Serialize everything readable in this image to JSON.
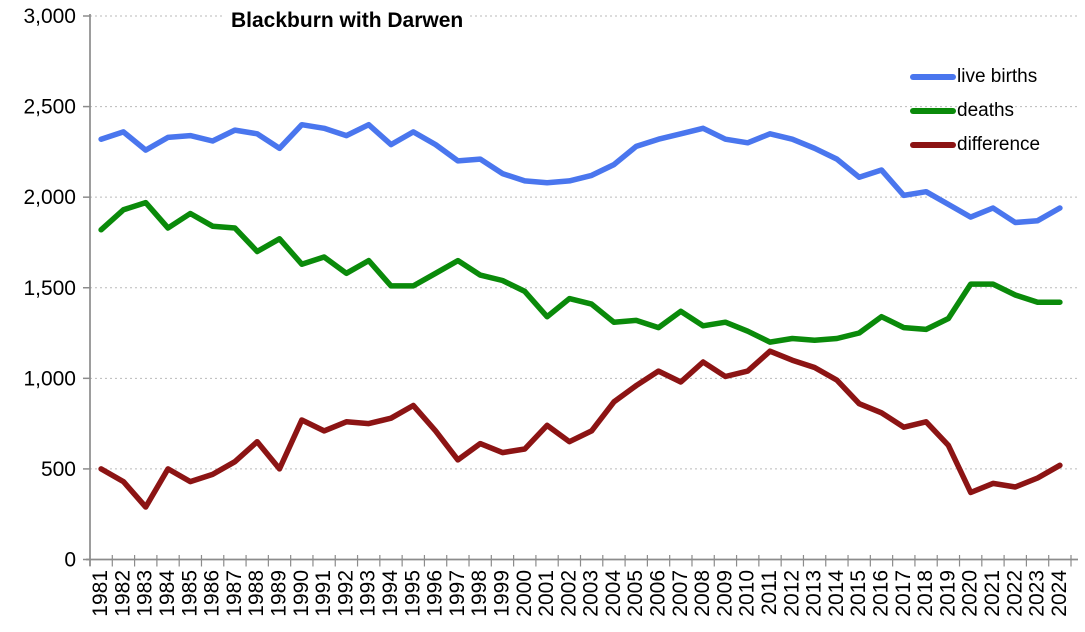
{
  "chart_data": {
    "type": "line",
    "title": "Blackburn with Darwen",
    "years": [
      1981,
      1982,
      1983,
      1984,
      1985,
      1986,
      1987,
      1988,
      1989,
      1990,
      1991,
      1992,
      1993,
      1994,
      1995,
      1996,
      1997,
      1998,
      1999,
      2000,
      2001,
      2002,
      2003,
      2004,
      2005,
      2006,
      2007,
      2008,
      2009,
      2010,
      2011,
      2012,
      2013,
      2014,
      2015,
      2016,
      2017,
      2018,
      2019,
      2020,
      2021,
      2022,
      2023,
      2024
    ],
    "series": [
      {
        "name": "live births",
        "color": "#4a76ee",
        "values": [
          2320,
          2360,
          2260,
          2330,
          2340,
          2310,
          2370,
          2350,
          2270,
          2400,
          2380,
          2340,
          2400,
          2290,
          2360,
          2290,
          2200,
          2210,
          2130,
          2090,
          2080,
          2090,
          2120,
          2180,
          2280,
          2320,
          2350,
          2380,
          2320,
          2300,
          2350,
          2320,
          2270,
          2210,
          2110,
          2150,
          2010,
          2030,
          1960,
          1890,
          1940,
          1860,
          1870,
          1940
        ]
      },
      {
        "name": "deaths",
        "color": "#0a8a0a",
        "values": [
          1820,
          1930,
          1970,
          1830,
          1910,
          1840,
          1830,
          1700,
          1770,
          1630,
          1670,
          1580,
          1650,
          1510,
          1510,
          1580,
          1650,
          1570,
          1540,
          1480,
          1340,
          1440,
          1410,
          1310,
          1320,
          1280,
          1370,
          1290,
          1310,
          1260,
          1200,
          1220,
          1210,
          1220,
          1250,
          1340,
          1280,
          1270,
          1330,
          1520,
          1520,
          1460,
          1420,
          1420
        ]
      },
      {
        "name": "difference",
        "color": "#8c1414",
        "values": [
          500,
          430,
          290,
          500,
          430,
          470,
          540,
          650,
          500,
          770,
          710,
          760,
          750,
          780,
          850,
          710,
          550,
          640,
          590,
          610,
          740,
          650,
          710,
          870,
          960,
          1040,
          980,
          1090,
          1010,
          1040,
          1150,
          1100,
          1060,
          990,
          860,
          810,
          730,
          760,
          630,
          370,
          420,
          400,
          450,
          520
        ]
      }
    ],
    "ylim": [
      0,
      3000
    ],
    "y_ticks": [
      0,
      500,
      1000,
      1500,
      2000,
      2500,
      3000
    ],
    "y_tick_labels": [
      "0",
      "500",
      "1,000",
      "1,500",
      "2,000",
      "2,500",
      "3,000"
    ],
    "grid": "horizontal dashed",
    "x_label_rotation": -90,
    "legend_position": "top-right"
  },
  "colors": {
    "background": "#ffffff",
    "axis": "#8c8c8c",
    "gridline": "#bababa",
    "text": "#000000"
  }
}
